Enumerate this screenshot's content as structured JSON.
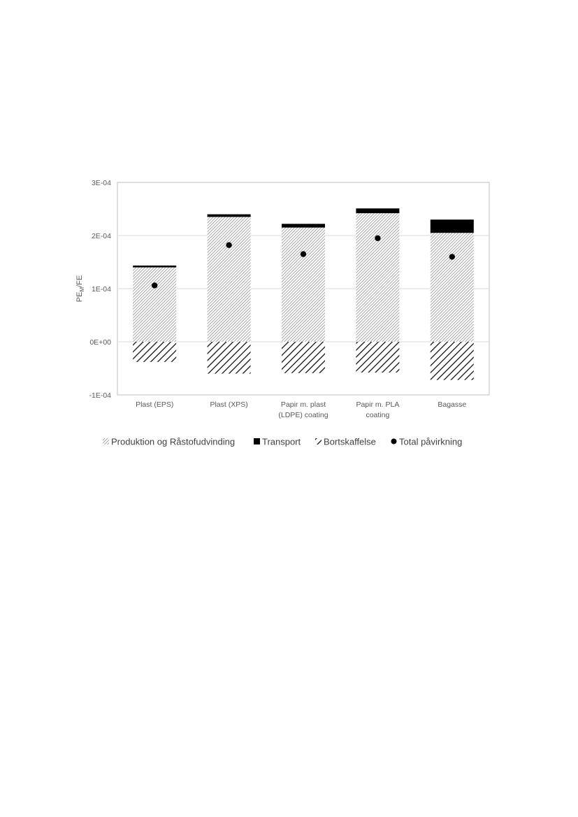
{
  "chart_data": {
    "type": "bar",
    "stacked": true,
    "categories": [
      [
        "Plast (EPS)"
      ],
      [
        "Plast (XPS)"
      ],
      [
        "Papir m. plast",
        "(LDPE) coating"
      ],
      [
        "Papir m. PLA",
        "coating"
      ],
      [
        "Bagasse"
      ]
    ],
    "series": [
      {
        "name": "Produktion og Råstofudvinding",
        "pattern": "fine-diagonal-hatch",
        "values": [
          0.00014,
          0.000235,
          0.000215,
          0.000242,
          0.000205
        ]
      },
      {
        "name": "Transport",
        "pattern": "solid-black",
        "values": [
          3.5e-06,
          5e-06,
          7e-06,
          9e-06,
          2.5e-05
        ]
      },
      {
        "name": "Bortskaffelse",
        "pattern": "wide-diagonal-hatch",
        "values": [
          -3.8e-05,
          -6e-05,
          -5.9e-05,
          -5.8e-05,
          -7.2e-05
        ]
      },
      {
        "name": "Total påvirkning",
        "type": "marker",
        "values": [
          0.000106,
          0.000182,
          0.000165,
          0.000195,
          0.00016
        ]
      }
    ],
    "ylabel_main": "PE",
    "ylabel_sub": "M",
    "ylabel_rest": "/FE",
    "xlabel": "",
    "ylim": [
      -0.0001,
      0.0003
    ],
    "yticks": [
      {
        "value": 0.0003,
        "label": "3E-04"
      },
      {
        "value": 0.0002,
        "label": "2E-04"
      },
      {
        "value": 0.0001,
        "label": "1E-04"
      },
      {
        "value": 0,
        "label": "0E+00"
      },
      {
        "value": -0.0001,
        "label": "-1E-04"
      }
    ],
    "grid": true,
    "legend_position": "bottom",
    "colors": {
      "fill": "#000000",
      "grid": "#d9d9d9",
      "frame": "#bfbfbf",
      "text": "#595959"
    }
  }
}
